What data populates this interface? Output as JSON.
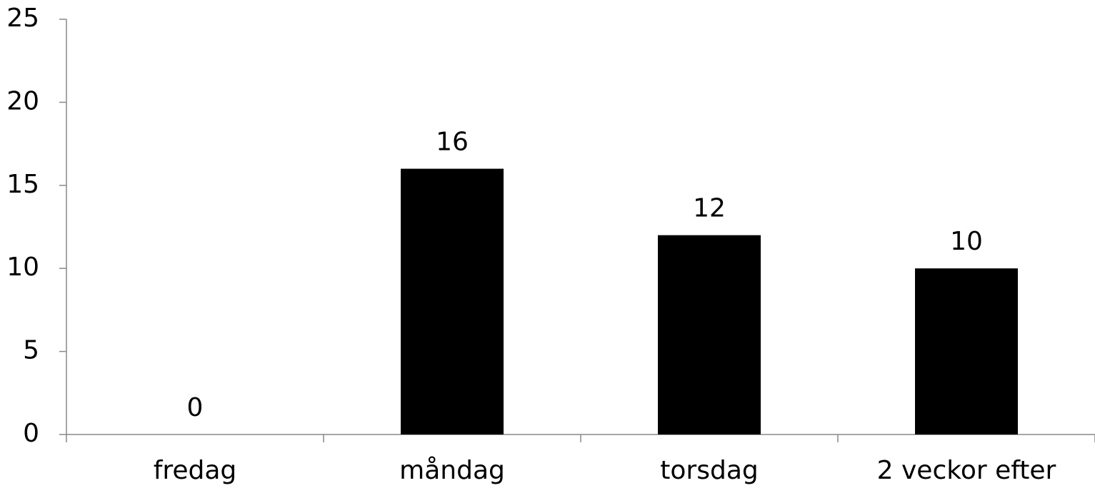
{
  "chart_data": {
    "type": "bar",
    "categories": [
      "fredag",
      "måndag",
      "torsdag",
      "2 veckor efter"
    ],
    "values": [
      0,
      16,
      12,
      10
    ],
    "color": "#000000",
    "ylim": [
      0,
      25
    ],
    "yticks": [
      0,
      5,
      10,
      15,
      20,
      25
    ],
    "grid": false,
    "data_labels": true
  }
}
